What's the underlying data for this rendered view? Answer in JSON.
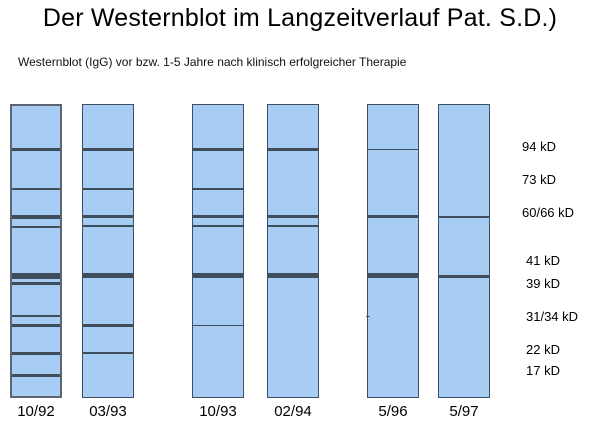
{
  "title": "Der Westernblot im Langzeitverlauf Pat. S.D.)",
  "subtitle": "Westernblot (IgG) vor bzw. 1-5 Jahre nach klinisch erfolgreicher Therapie",
  "strips": [
    {
      "date": "10/92"
    },
    {
      "date": "03/93"
    },
    {
      "date": "10/93"
    },
    {
      "date": "02/94"
    },
    {
      "date": "5/96"
    },
    {
      "date": "5/97"
    }
  ],
  "markers": [
    "94 kD",
    "73 kD",
    "60/66 kD",
    "41 kD",
    "39 kD",
    "31/34 kD",
    "22 kD",
    "17 kD"
  ],
  "colors": {
    "strip_fill": "#a7cdf5",
    "band": "#3e4c5c",
    "border": "#3f4f63"
  }
}
